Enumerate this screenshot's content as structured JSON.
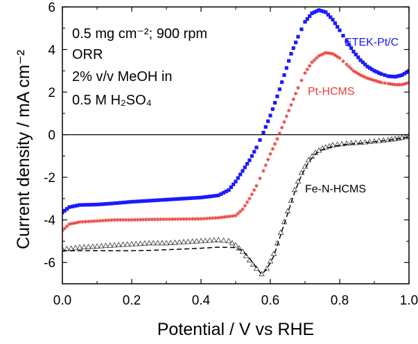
{
  "chart_data": {
    "type": "scatter",
    "xlabel": "Potential / V vs RHE",
    "ylabel": "Current density / mA cm⁻²",
    "xlim": [
      0.0,
      1.0
    ],
    "ylim": [
      -7,
      6
    ],
    "x_ticks": [
      "0.0",
      "0.2",
      "0.4",
      "0.6",
      "0.8",
      "1.0"
    ],
    "y_ticks": [
      "-6",
      "-4",
      "-2",
      "0",
      "2",
      "4",
      "6"
    ],
    "annotation_lines": [
      "0.5 mg cm⁻²; 900 rpm",
      "ORR",
      "2% v/v MeOH in",
      "0.5 M H₂SO₄"
    ],
    "zero_line": true,
    "series": [
      {
        "name": "ETEK-Pt/C",
        "color": "#1a1aff",
        "marker": "square",
        "points": [
          [
            0.0,
            -3.65
          ],
          [
            0.02,
            -3.4
          ],
          [
            0.05,
            -3.3
          ],
          [
            0.1,
            -3.28
          ],
          [
            0.15,
            -3.22
          ],
          [
            0.2,
            -3.15
          ],
          [
            0.25,
            -3.1
          ],
          [
            0.3,
            -3.05
          ],
          [
            0.35,
            -3.0
          ],
          [
            0.4,
            -2.95
          ],
          [
            0.45,
            -2.85
          ],
          [
            0.48,
            -2.6
          ],
          [
            0.5,
            -2.2
          ],
          [
            0.52,
            -1.7
          ],
          [
            0.54,
            -1.2
          ],
          [
            0.56,
            -0.6
          ],
          [
            0.58,
            0.1
          ],
          [
            0.6,
            0.9
          ],
          [
            0.62,
            1.8
          ],
          [
            0.64,
            2.8
          ],
          [
            0.66,
            3.8
          ],
          [
            0.68,
            4.6
          ],
          [
            0.7,
            5.3
          ],
          [
            0.72,
            5.7
          ],
          [
            0.74,
            5.85
          ],
          [
            0.76,
            5.75
          ],
          [
            0.78,
            5.4
          ],
          [
            0.8,
            4.9
          ],
          [
            0.82,
            4.4
          ],
          [
            0.84,
            3.9
          ],
          [
            0.86,
            3.5
          ],
          [
            0.88,
            3.2
          ],
          [
            0.9,
            3.0
          ],
          [
            0.92,
            2.85
          ],
          [
            0.94,
            2.75
          ],
          [
            0.96,
            2.72
          ],
          [
            0.98,
            2.8
          ],
          [
            1.0,
            3.0
          ]
        ]
      },
      {
        "name": "Pt-HCMS",
        "color": "#e8403a",
        "marker": "star",
        "points": [
          [
            0.0,
            -4.5
          ],
          [
            0.02,
            -4.2
          ],
          [
            0.05,
            -4.1
          ],
          [
            0.1,
            -4.05
          ],
          [
            0.15,
            -4.0
          ],
          [
            0.2,
            -4.0
          ],
          [
            0.25,
            -3.98
          ],
          [
            0.3,
            -3.97
          ],
          [
            0.35,
            -3.96
          ],
          [
            0.4,
            -3.95
          ],
          [
            0.45,
            -3.9
          ],
          [
            0.5,
            -3.8
          ],
          [
            0.52,
            -3.5
          ],
          [
            0.54,
            -3.0
          ],
          [
            0.56,
            -2.4
          ],
          [
            0.58,
            -1.7
          ],
          [
            0.6,
            -0.9
          ],
          [
            0.62,
            -0.2
          ],
          [
            0.64,
            0.6
          ],
          [
            0.66,
            1.4
          ],
          [
            0.68,
            2.2
          ],
          [
            0.7,
            2.9
          ],
          [
            0.72,
            3.4
          ],
          [
            0.74,
            3.7
          ],
          [
            0.76,
            3.85
          ],
          [
            0.78,
            3.8
          ],
          [
            0.8,
            3.6
          ],
          [
            0.82,
            3.3
          ],
          [
            0.84,
            3.0
          ],
          [
            0.86,
            2.8
          ],
          [
            0.88,
            2.65
          ],
          [
            0.9,
            2.55
          ],
          [
            0.92,
            2.45
          ],
          [
            0.94,
            2.4
          ],
          [
            0.96,
            2.35
          ],
          [
            0.98,
            2.35
          ],
          [
            1.0,
            2.45
          ]
        ]
      },
      {
        "name": "Fe-N-HCMS",
        "color": "#333333",
        "marker": "triangle",
        "points": [
          [
            0.0,
            -5.4
          ],
          [
            0.05,
            -5.3
          ],
          [
            0.1,
            -5.25
          ],
          [
            0.15,
            -5.2
          ],
          [
            0.2,
            -5.15
          ],
          [
            0.25,
            -5.1
          ],
          [
            0.3,
            -5.1
          ],
          [
            0.35,
            -5.05
          ],
          [
            0.4,
            -5.0
          ],
          [
            0.45,
            -4.95
          ],
          [
            0.48,
            -5.0
          ],
          [
            0.5,
            -5.2
          ],
          [
            0.52,
            -5.5
          ],
          [
            0.54,
            -5.9
          ],
          [
            0.56,
            -6.3
          ],
          [
            0.575,
            -6.55
          ],
          [
            0.59,
            -6.3
          ],
          [
            0.61,
            -5.6
          ],
          [
            0.63,
            -4.6
          ],
          [
            0.65,
            -3.6
          ],
          [
            0.67,
            -2.6
          ],
          [
            0.69,
            -1.8
          ],
          [
            0.71,
            -1.2
          ],
          [
            0.73,
            -0.85
          ],
          [
            0.75,
            -0.65
          ],
          [
            0.78,
            -0.5
          ],
          [
            0.82,
            -0.42
          ],
          [
            0.86,
            -0.38
          ],
          [
            0.9,
            -0.32
          ],
          [
            0.94,
            -0.25
          ],
          [
            0.97,
            -0.18
          ],
          [
            1.0,
            -0.08
          ]
        ]
      },
      {
        "name": "",
        "color": "#000000",
        "marker": "none",
        "line": "dashed",
        "points": [
          [
            0.0,
            -5.45
          ],
          [
            0.05,
            -5.45
          ],
          [
            0.1,
            -5.45
          ],
          [
            0.15,
            -5.45
          ],
          [
            0.2,
            -5.45
          ],
          [
            0.25,
            -5.43
          ],
          [
            0.3,
            -5.4
          ],
          [
            0.35,
            -5.37
          ],
          [
            0.4,
            -5.33
          ],
          [
            0.45,
            -5.28
          ],
          [
            0.5,
            -5.3
          ],
          [
            0.52,
            -5.45
          ],
          [
            0.54,
            -5.8
          ],
          [
            0.56,
            -6.25
          ],
          [
            0.575,
            -6.55
          ],
          [
            0.59,
            -6.3
          ],
          [
            0.61,
            -5.7
          ],
          [
            0.63,
            -4.7
          ],
          [
            0.65,
            -3.7
          ],
          [
            0.67,
            -2.7
          ],
          [
            0.69,
            -1.9
          ],
          [
            0.71,
            -1.3
          ],
          [
            0.73,
            -0.9
          ],
          [
            0.75,
            -0.7
          ],
          [
            0.78,
            -0.55
          ],
          [
            0.82,
            -0.45
          ],
          [
            0.86,
            -0.4
          ],
          [
            0.9,
            -0.33
          ],
          [
            0.94,
            -0.26
          ],
          [
            0.97,
            -0.18
          ],
          [
            1.0,
            -0.1
          ]
        ]
      }
    ]
  }
}
